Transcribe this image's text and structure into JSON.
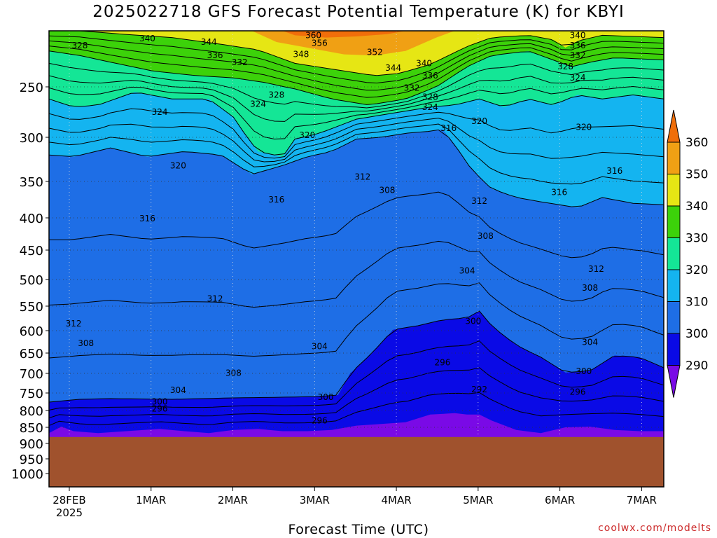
{
  "chart_data": {
    "type": "contour",
    "title": "2025022718 GFS Forecast Potential Temperature (K) for KBYI",
    "xlabel": "Forecast Time (UTC)",
    "ylabel": "",
    "credit": "coolwx.com/modelts",
    "y_axis": {
      "scale": "pressure (inverted, log-like)",
      "ticks": [
        250,
        300,
        350,
        400,
        450,
        500,
        550,
        600,
        650,
        700,
        750,
        800,
        850,
        900,
        950,
        1000
      ],
      "range": [
        200,
        1050
      ]
    },
    "x_axis": {
      "ticks": [
        "28FEB",
        "1MAR",
        "2MAR",
        "3MAR",
        "4MAR",
        "5MAR",
        "6MAR",
        "7MAR"
      ],
      "tick_sublabels": {
        "28FEB": "2025"
      },
      "range": [
        "2025-02-27T18Z",
        "2025-03-07T06Z"
      ]
    },
    "colorbar": {
      "levels": [
        290,
        300,
        310,
        320,
        330,
        340,
        350,
        360
      ],
      "colors": [
        "#7a0ae6",
        "#0a0ae6",
        "#1e6ee6",
        "#14b4f0",
        "#14e696",
        "#3cd20a",
        "#e6e614",
        "#f0a014",
        "#f06e0a"
      ],
      "labels": [
        "290",
        "300",
        "310",
        "320",
        "330",
        "340",
        "350",
        "360"
      ]
    },
    "contour_labels": [
      {
        "v": "340",
        "t": 0.16,
        "p": 207
      },
      {
        "v": "344",
        "t": 0.26,
        "p": 210
      },
      {
        "v": "336",
        "t": 0.27,
        "p": 222
      },
      {
        "v": "332",
        "t": 0.31,
        "p": 228
      },
      {
        "v": "328",
        "t": 0.05,
        "p": 213
      },
      {
        "v": "360",
        "t": 0.43,
        "p": 204
      },
      {
        "v": "356",
        "t": 0.44,
        "p": 211
      },
      {
        "v": "348",
        "t": 0.41,
        "p": 221
      },
      {
        "v": "352",
        "t": 0.53,
        "p": 219
      },
      {
        "v": "344",
        "t": 0.56,
        "p": 233
      },
      {
        "v": "340",
        "t": 0.61,
        "p": 229
      },
      {
        "v": "336",
        "t": 0.62,
        "p": 240
      },
      {
        "v": "332",
        "t": 0.59,
        "p": 251
      },
      {
        "v": "328",
        "t": 0.62,
        "p": 260
      },
      {
        "v": "324",
        "t": 0.62,
        "p": 270
      },
      {
        "v": "328",
        "t": 0.37,
        "p": 258
      },
      {
        "v": "324",
        "t": 0.34,
        "p": 267
      },
      {
        "v": "324",
        "t": 0.18,
        "p": 275
      },
      {
        "v": "340",
        "t": 0.86,
        "p": 204
      },
      {
        "v": "336",
        "t": 0.86,
        "p": 213
      },
      {
        "v": "332",
        "t": 0.86,
        "p": 222
      },
      {
        "v": "328",
        "t": 0.84,
        "p": 232
      },
      {
        "v": "324",
        "t": 0.86,
        "p": 242
      },
      {
        "v": "320",
        "t": 0.7,
        "p": 284
      },
      {
        "v": "320",
        "t": 0.87,
        "p": 290
      },
      {
        "v": "316",
        "t": 0.65,
        "p": 291
      },
      {
        "v": "320",
        "t": 0.42,
        "p": 298
      },
      {
        "v": "320",
        "t": 0.21,
        "p": 332
      },
      {
        "v": "316",
        "t": 0.92,
        "p": 338
      },
      {
        "v": "312",
        "t": 0.51,
        "p": 345
      },
      {
        "v": "316",
        "t": 0.83,
        "p": 365
      },
      {
        "v": "308",
        "t": 0.55,
        "p": 362
      },
      {
        "v": "316",
        "t": 0.37,
        "p": 375
      },
      {
        "v": "312",
        "t": 0.7,
        "p": 377
      },
      {
        "v": "316",
        "t": 0.16,
        "p": 401
      },
      {
        "v": "308",
        "t": 0.71,
        "p": 428
      },
      {
        "v": "304",
        "t": 0.68,
        "p": 485
      },
      {
        "v": "312",
        "t": 0.89,
        "p": 482
      },
      {
        "v": "308",
        "t": 0.88,
        "p": 516
      },
      {
        "v": "312",
        "t": 0.27,
        "p": 536
      },
      {
        "v": "300",
        "t": 0.69,
        "p": 581
      },
      {
        "v": "312",
        "t": 0.04,
        "p": 586
      },
      {
        "v": "304",
        "t": 0.44,
        "p": 635
      },
      {
        "v": "304",
        "t": 0.88,
        "p": 626
      },
      {
        "v": "308",
        "t": 0.06,
        "p": 628
      },
      {
        "v": "296",
        "t": 0.64,
        "p": 673
      },
      {
        "v": "300",
        "t": 0.87,
        "p": 695
      },
      {
        "v": "308",
        "t": 0.3,
        "p": 699
      },
      {
        "v": "304",
        "t": 0.21,
        "p": 743
      },
      {
        "v": "296",
        "t": 0.86,
        "p": 747
      },
      {
        "v": "292",
        "t": 0.7,
        "p": 741
      },
      {
        "v": "300",
        "t": 0.45,
        "p": 762
      },
      {
        "v": "300",
        "t": 0.18,
        "p": 775
      },
      {
        "v": "296",
        "t": 0.18,
        "p": 795
      },
      {
        "v": "296",
        "t": 0.44,
        "p": 830
      }
    ]
  }
}
